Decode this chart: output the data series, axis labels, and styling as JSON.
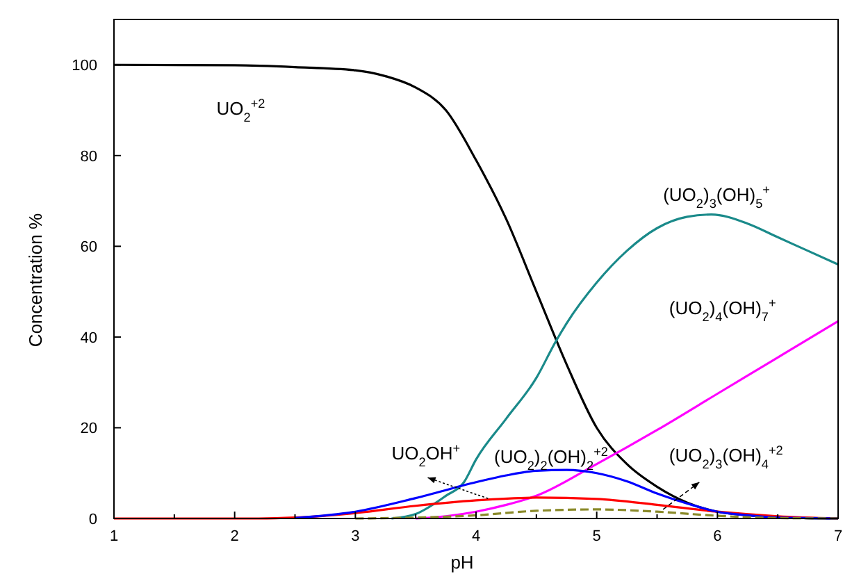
{
  "chart_data": {
    "type": "line",
    "xlabel": "pH",
    "ylabel": "Concentration %",
    "xlim": [
      1,
      7
    ],
    "ylim": [
      0,
      110
    ],
    "xticks": [
      1,
      {
        "value": 1.5,
        "label": null
      },
      2,
      {
        "value": 2.5,
        "label": null
      },
      3,
      {
        "value": 3.5,
        "label": null
      },
      4,
      {
        "value": 4.5,
        "label": null
      },
      5,
      {
        "value": 5.5,
        "label": null
      },
      6,
      {
        "value": 6.5,
        "label": null
      },
      7
    ],
    "yticks": [
      0,
      20,
      40,
      60,
      80,
      100
    ],
    "grid": false,
    "marker": "none",
    "series": [
      {
        "name": "UO$_{2}$$^{+2}$",
        "color": "#000000",
        "x": [
          1,
          2,
          2.5,
          3,
          3.25,
          3.5,
          3.75,
          4,
          4.25,
          4.5,
          4.75,
          5,
          5.25,
          5.5,
          5.75,
          6,
          6.5,
          7
        ],
        "values": [
          100,
          99.9,
          99.5,
          98.8,
          97.5,
          95,
          90,
          79,
          66,
          50,
          34,
          20,
          12,
          7,
          3.5,
          1.5,
          0.3,
          0
        ]
      },
      {
        "name": "(UO$_{2}$)$_{3}$(OH)$_{5}$$^{+}$",
        "color": "#1a8a8a",
        "x": [
          3.3,
          3.5,
          3.75,
          3.9,
          4,
          4.25,
          4.5,
          4.66,
          4.75,
          5,
          5.25,
          5.5,
          5.75,
          5.95,
          6.25,
          6.5,
          6.75,
          7
        ],
        "values": [
          0,
          1,
          5,
          8,
          13,
          22,
          31,
          39,
          43,
          52,
          59,
          64,
          66.5,
          67,
          65,
          62,
          59,
          56
        ]
      },
      {
        "name": "(UO$_{2}$)$_{4}$(OH)$_{7}$$^{+}$",
        "color": "#ff00ff",
        "x": [
          3.5,
          3.75,
          4,
          4.25,
          4.5,
          5,
          5.5,
          6,
          6.5,
          7
        ],
        "values": [
          0,
          0.5,
          1.5,
          3,
          5,
          12,
          19.5,
          27.5,
          35.5,
          43.5
        ]
      },
      {
        "name": "UO$_{2}$OH$^{+}$",
        "color": "#ff0000",
        "x": [
          1,
          2.2,
          2.5,
          3,
          3.5,
          4,
          4.5,
          5,
          5.5,
          6,
          6.5,
          7
        ],
        "values": [
          0,
          0,
          0.2,
          1.2,
          2.8,
          4,
          4.6,
          4.3,
          3,
          1.5,
          0.5,
          0
        ]
      },
      {
        "name": "(UO$_{2}$)$_{2}$(OH)$_{2}$$^{+2}$",
        "color": "#0000ff",
        "x": [
          2.5,
          3,
          3.5,
          4,
          4.25,
          4.5,
          4.75,
          5,
          5.25,
          5.5,
          5.75,
          6,
          6.25,
          6.5,
          7
        ],
        "values": [
          0.1,
          1.5,
          4.5,
          8,
          9.5,
          10.5,
          10.7,
          10,
          8.2,
          5.5,
          3.3,
          1.5,
          0.7,
          0.2,
          0
        ]
      },
      {
        "name": "(UO$_{2}$)$_{3}$(OH)$_{4}$$^{+2}$",
        "color": "#8a8a2a",
        "line_style": "dashed",
        "x": [
          3,
          3.5,
          4,
          4.5,
          5,
          5.5,
          6,
          6.5,
          7
        ],
        "values": [
          0,
          0.2,
          0.7,
          1.7,
          2,
          1.5,
          0.6,
          0.1,
          0
        ]
      }
    ]
  }
}
